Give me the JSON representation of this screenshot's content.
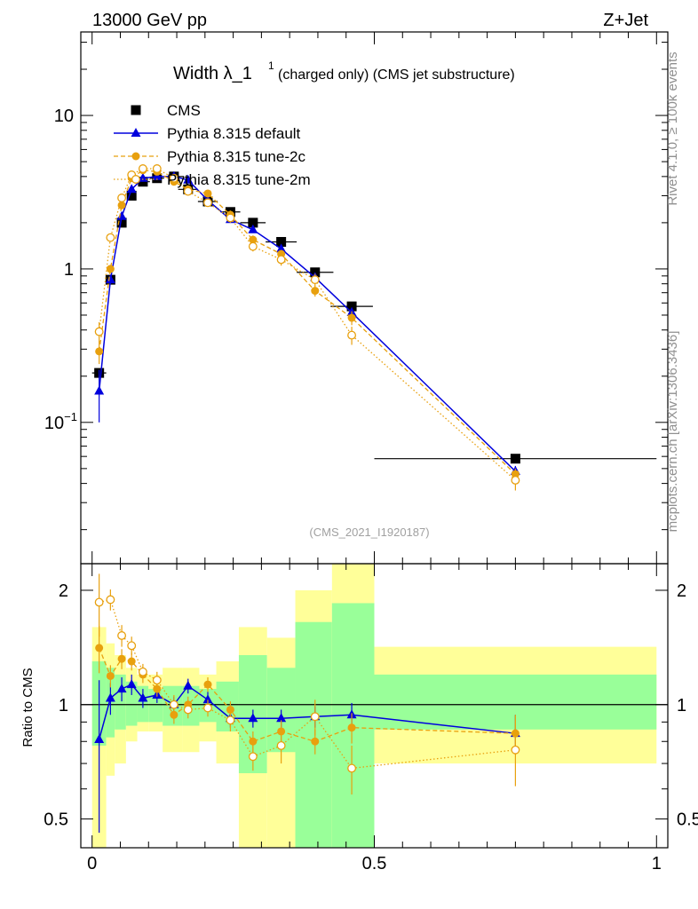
{
  "header": {
    "energy_label": "13000 GeV pp",
    "process_label": "Z+Jet",
    "title_main": "Width λ_1",
    "title_sup": "1",
    "title_sub": "(charged only) (CMS jet substructure)",
    "analysis_id": "(CMS_2021_I1920187)",
    "side_rivet": "Rivet 4.1.0, ≥ 100k events",
    "side_mcplots": "mcplots.cern.ch [arXiv:1306.3436]"
  },
  "legend": [
    {
      "key": "cms",
      "label": "CMS"
    },
    {
      "key": "default",
      "label": "Pythia 8.315 default"
    },
    {
      "key": "tune2c",
      "label": "Pythia 8.315 tune-2c"
    },
    {
      "key": "tune2m",
      "label": "Pythia 8.315 tune-2m"
    }
  ],
  "colors": {
    "data": "#000000",
    "default": "#0000dd",
    "tune2c": "#e8a00e",
    "tune2m": "#e8a00e",
    "band_inner": "#99ff99",
    "band_outer": "#ffff99"
  },
  "chart_data": [
    {
      "type": "line",
      "panel": "main",
      "yscale": "log",
      "xlim": [
        -0.02,
        1.02
      ],
      "ylim": [
        0.012,
        35
      ],
      "y_ticks": [
        {
          "value": 10,
          "label": "10"
        },
        {
          "value": 1,
          "label": "1"
        },
        {
          "value": 0.1,
          "label": "10",
          "sup": "−1"
        }
      ],
      "x": [
        0.0125,
        0.0325,
        0.0525,
        0.07,
        0.09,
        0.115,
        0.145,
        0.17,
        0.205,
        0.245,
        0.285,
        0.335,
        0.395,
        0.46,
        0.75
      ],
      "x_err": [
        0.0125,
        0.0075,
        0.0075,
        0.0075,
        0.0125,
        0.0125,
        0.0175,
        0.0175,
        0.0175,
        0.0175,
        0.0225,
        0.0275,
        0.0325,
        0.0375,
        0.25
      ],
      "series": [
        {
          "name": "CMS",
          "key": "cms",
          "marker": "square",
          "values": [
            0.21,
            0.85,
            2.0,
            3.0,
            3.7,
            3.9,
            4.0,
            3.3,
            2.75,
            2.35,
            2.0,
            1.5,
            0.95,
            0.57,
            0.058
          ]
        },
        {
          "name": "Pythia 8.315 default",
          "key": "default",
          "marker": "triangle",
          "values": [
            0.16,
            0.85,
            2.2,
            3.3,
            3.9,
            4.0,
            4.0,
            3.8,
            2.8,
            2.1,
            1.8,
            1.35,
            0.88,
            0.52,
            0.048
          ],
          "err": [
            0.06,
            0.05,
            0.1,
            0.15,
            0.2,
            0.15,
            0.15,
            0.15,
            0.1,
            0.1,
            0.08,
            0.06,
            0.05,
            0.04,
            0.004
          ]
        },
        {
          "name": "Pythia 8.315 tune-2c",
          "key": "tune2c",
          "marker": "circle",
          "values": [
            0.29,
            1.0,
            2.6,
            3.9,
            4.4,
            4.3,
            3.7,
            3.3,
            3.1,
            2.25,
            1.55,
            1.25,
            0.72,
            0.48,
            0.046
          ],
          "err": [
            0.05,
            0.06,
            0.15,
            0.2,
            0.2,
            0.2,
            0.2,
            0.15,
            0.15,
            0.15,
            0.1,
            0.08,
            0.06,
            0.05,
            0.004
          ]
        },
        {
          "name": "Pythia 8.315 tune-2m",
          "key": "tune2m",
          "marker": "open-circle",
          "values": [
            0.39,
            1.6,
            2.9,
            4.1,
            4.5,
            4.5,
            3.9,
            3.2,
            2.7,
            2.15,
            1.4,
            1.15,
            0.85,
            0.37,
            0.042
          ],
          "err": [
            0.06,
            0.1,
            0.15,
            0.2,
            0.2,
            0.2,
            0.2,
            0.15,
            0.15,
            0.15,
            0.1,
            0.1,
            0.08,
            0.05,
            0.006
          ]
        }
      ]
    },
    {
      "type": "line",
      "panel": "ratio",
      "yscale": "log",
      "ylabel": "Ratio to CMS",
      "xlim": [
        -0.02,
        1.02
      ],
      "ylim": [
        0.42,
        2.35
      ],
      "y_ticks": [
        {
          "value": 2,
          "label": "2"
        },
        {
          "value": 1,
          "label": "1"
        },
        {
          "value": 0.5,
          "label": "0.5"
        }
      ],
      "x_ticks": [
        {
          "value": 0,
          "label": "0"
        },
        {
          "value": 0.5,
          "label": "0.5"
        },
        {
          "value": 1,
          "label": "1"
        }
      ],
      "bins": [
        {
          "lo": 0.0,
          "hi": 0.025,
          "inner": [
            0.78,
            1.3
          ],
          "outer": [
            0.4,
            1.6
          ]
        },
        {
          "lo": 0.025,
          "hi": 0.04,
          "inner": [
            0.82,
            1.25
          ],
          "outer": [
            0.65,
            1.45
          ]
        },
        {
          "lo": 0.04,
          "hi": 0.06,
          "inner": [
            0.86,
            1.2
          ],
          "outer": [
            0.7,
            1.35
          ]
        },
        {
          "lo": 0.06,
          "hi": 0.08,
          "inner": [
            0.88,
            1.15
          ],
          "outer": [
            0.8,
            1.25
          ]
        },
        {
          "lo": 0.08,
          "hi": 0.1,
          "inner": [
            0.9,
            1.12
          ],
          "outer": [
            0.85,
            1.2
          ]
        },
        {
          "lo": 0.1,
          "hi": 0.125,
          "inner": [
            0.9,
            1.1
          ],
          "outer": [
            0.85,
            1.2
          ]
        },
        {
          "lo": 0.125,
          "hi": 0.16,
          "inner": [
            0.88,
            1.12
          ],
          "outer": [
            0.75,
            1.25
          ]
        },
        {
          "lo": 0.16,
          "hi": 0.19,
          "inner": [
            0.88,
            1.12
          ],
          "outer": [
            0.75,
            1.25
          ]
        },
        {
          "lo": 0.19,
          "hi": 0.22,
          "inner": [
            0.9,
            1.1
          ],
          "outer": [
            0.8,
            1.2
          ]
        },
        {
          "lo": 0.22,
          "hi": 0.26,
          "inner": [
            0.85,
            1.15
          ],
          "outer": [
            0.7,
            1.3
          ]
        },
        {
          "lo": 0.26,
          "hi": 0.31,
          "inner": [
            0.66,
            1.35
          ],
          "outer": [
            0.39,
            1.6
          ]
        },
        {
          "lo": 0.31,
          "hi": 0.36,
          "inner": [
            0.75,
            1.25
          ],
          "outer": [
            0.42,
            1.5
          ]
        },
        {
          "lo": 0.36,
          "hi": 0.425,
          "inner": [
            0.42,
            1.65
          ],
          "outer": [
            0.35,
            2.0
          ]
        },
        {
          "lo": 0.425,
          "hi": 0.5,
          "inner": [
            0.35,
            1.85
          ],
          "outer": [
            0.3,
            2.6
          ]
        },
        {
          "lo": 0.5,
          "hi": 1.0,
          "inner": [
            0.86,
            1.2
          ],
          "outer": [
            0.7,
            1.42
          ]
        }
      ],
      "x": [
        0.0125,
        0.0325,
        0.0525,
        0.07,
        0.09,
        0.115,
        0.145,
        0.17,
        0.205,
        0.245,
        0.285,
        0.335,
        0.395,
        0.46,
        0.75
      ],
      "series": [
        {
          "name": "Pythia 8.315 default",
          "key": "default",
          "marker": "triangle",
          "values": [
            0.81,
            1.04,
            1.1,
            1.13,
            1.04,
            1.06,
            1.0,
            1.12,
            1.03,
            0.92,
            0.92,
            0.92,
            0.93,
            0.94,
            0.84
          ],
          "err": [
            0.35,
            0.1,
            0.08,
            0.07,
            0.06,
            0.05,
            0.05,
            0.05,
            0.05,
            0.05,
            0.05,
            0.05,
            0.06,
            0.07,
            0.1
          ]
        },
        {
          "name": "Pythia 8.315 tune-2c",
          "key": "tune2c",
          "marker": "circle",
          "values": [
            1.41,
            1.19,
            1.32,
            1.3,
            1.2,
            1.1,
            0.94,
            1.0,
            1.13,
            0.97,
            0.8,
            0.85,
            0.8,
            0.87,
            0.84
          ],
          "err": [
            0.2,
            0.08,
            0.08,
            0.07,
            0.06,
            0.05,
            0.05,
            0.05,
            0.05,
            0.05,
            0.05,
            0.06,
            0.06,
            0.08,
            0.1
          ]
        },
        {
          "name": "Pythia 8.315 tune-2m",
          "key": "tune2m",
          "marker": "open-circle",
          "values": [
            1.86,
            1.89,
            1.52,
            1.43,
            1.22,
            1.16,
            1.0,
            0.97,
            0.98,
            0.91,
            0.73,
            0.78,
            0.93,
            0.68,
            0.76
          ],
          "err": [
            0.35,
            0.12,
            0.1,
            0.08,
            0.06,
            0.06,
            0.06,
            0.05,
            0.05,
            0.06,
            0.06,
            0.08,
            0.1,
            0.1,
            0.15
          ]
        }
      ]
    }
  ]
}
